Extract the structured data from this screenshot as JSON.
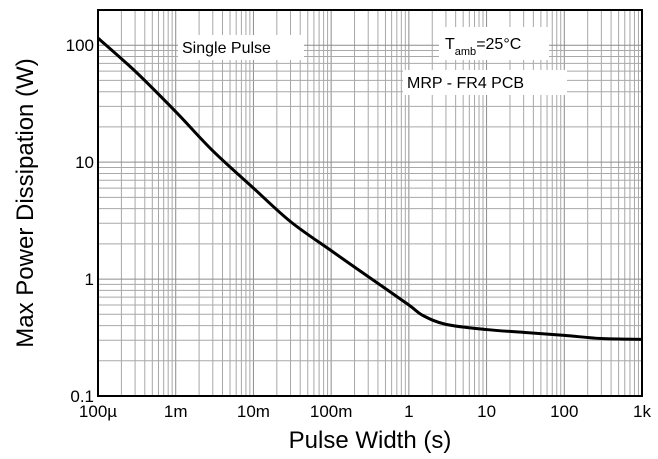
{
  "chart_data": {
    "type": "line",
    "xscale": "log",
    "yscale": "log",
    "xlim": [
      0.0001,
      1000
    ],
    "ylim": [
      0.1,
      200
    ],
    "grid": true,
    "xlabel": "Pulse Width (s)",
    "ylabel": "Max Power Dissipation (W)",
    "x_ticks": [
      {
        "value": 0.0001,
        "label": "100µ"
      },
      {
        "value": 0.001,
        "label": "1m"
      },
      {
        "value": 0.01,
        "label": "10m"
      },
      {
        "value": 0.1,
        "label": "100m"
      },
      {
        "value": 1,
        "label": "1"
      },
      {
        "value": 10,
        "label": "10"
      },
      {
        "value": 100,
        "label": "100"
      },
      {
        "value": 1000,
        "label": "1k"
      }
    ],
    "y_ticks": [
      {
        "value": 0.1,
        "label": "0.1"
      },
      {
        "value": 1,
        "label": "1"
      },
      {
        "value": 10,
        "label": "10"
      },
      {
        "value": 100,
        "label": "100"
      }
    ],
    "annotations": {
      "single_pulse": "Single Pulse",
      "temp_main": "T",
      "temp_sub": "amb",
      "temp_value": "=25°C",
      "board": "MRP - FR4 PCB"
    },
    "series": [
      {
        "color": "#000000",
        "x": [
          0.0001,
          0.0003,
          0.001,
          0.003,
          0.01,
          0.03,
          0.1,
          0.3,
          1,
          1.5,
          3,
          10,
          30,
          100,
          300,
          1000
        ],
        "y": [
          115,
          60,
          27,
          12.5,
          6,
          3.1,
          1.75,
          1.05,
          0.6,
          0.49,
          0.41,
          0.37,
          0.35,
          0.33,
          0.31,
          0.305
        ]
      }
    ]
  }
}
